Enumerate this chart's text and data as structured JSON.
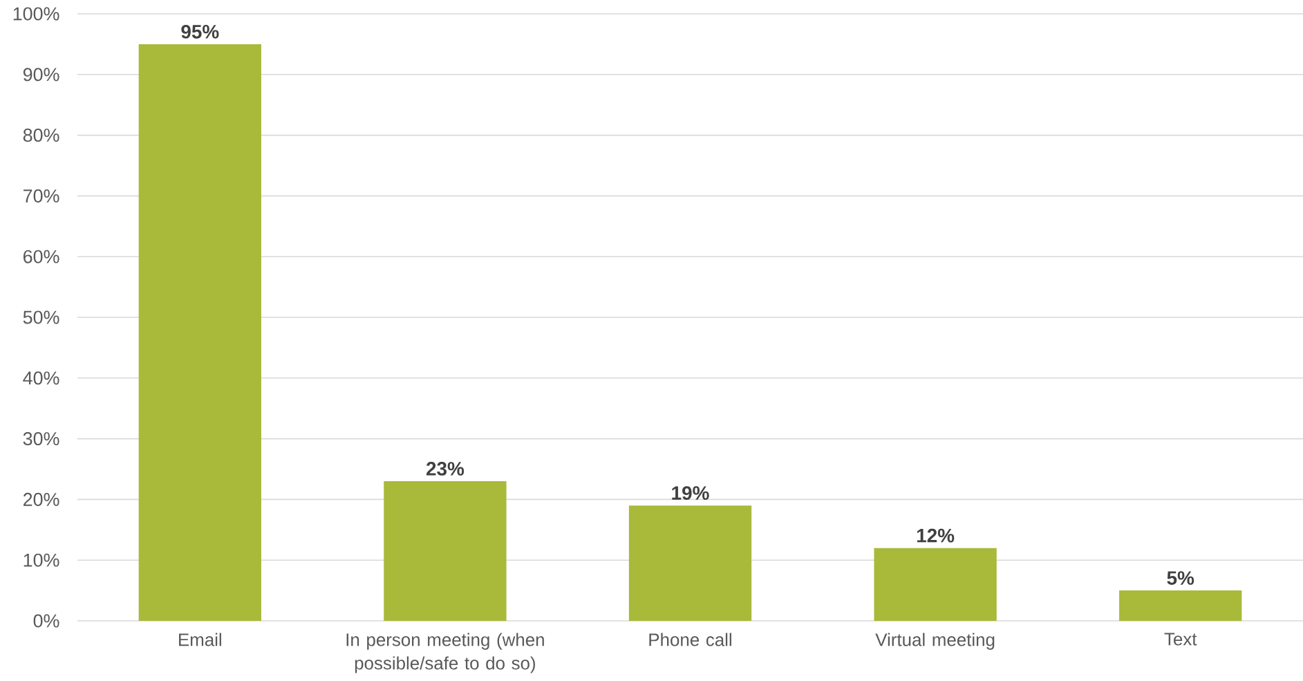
{
  "chart_data": {
    "type": "bar",
    "categories": [
      "Email",
      "In person meeting (when possible/safe to do so)",
      "Phone call",
      "Virtual meeting",
      "Text"
    ],
    "values": [
      95,
      23,
      19,
      12,
      5
    ],
    "color": "#a9b93a",
    "ylim": [
      0,
      100
    ],
    "yticks": [
      {
        "value": 0,
        "label": "0%"
      },
      {
        "value": 10,
        "label": "10%"
      },
      {
        "value": 20,
        "label": "20%"
      },
      {
        "value": 30,
        "label": "30%"
      },
      {
        "value": 40,
        "label": "40%"
      },
      {
        "value": 50,
        "label": "50%"
      },
      {
        "value": 60,
        "label": "60%"
      },
      {
        "value": 70,
        "label": "70%"
      },
      {
        "value": 80,
        "label": "80%"
      },
      {
        "value": 90,
        "label": "90%"
      },
      {
        "value": 100,
        "label": "100%"
      }
    ],
    "grid": "y",
    "value_labels": [
      "95%",
      "23%",
      "19%",
      "12%",
      "5%"
    ]
  }
}
